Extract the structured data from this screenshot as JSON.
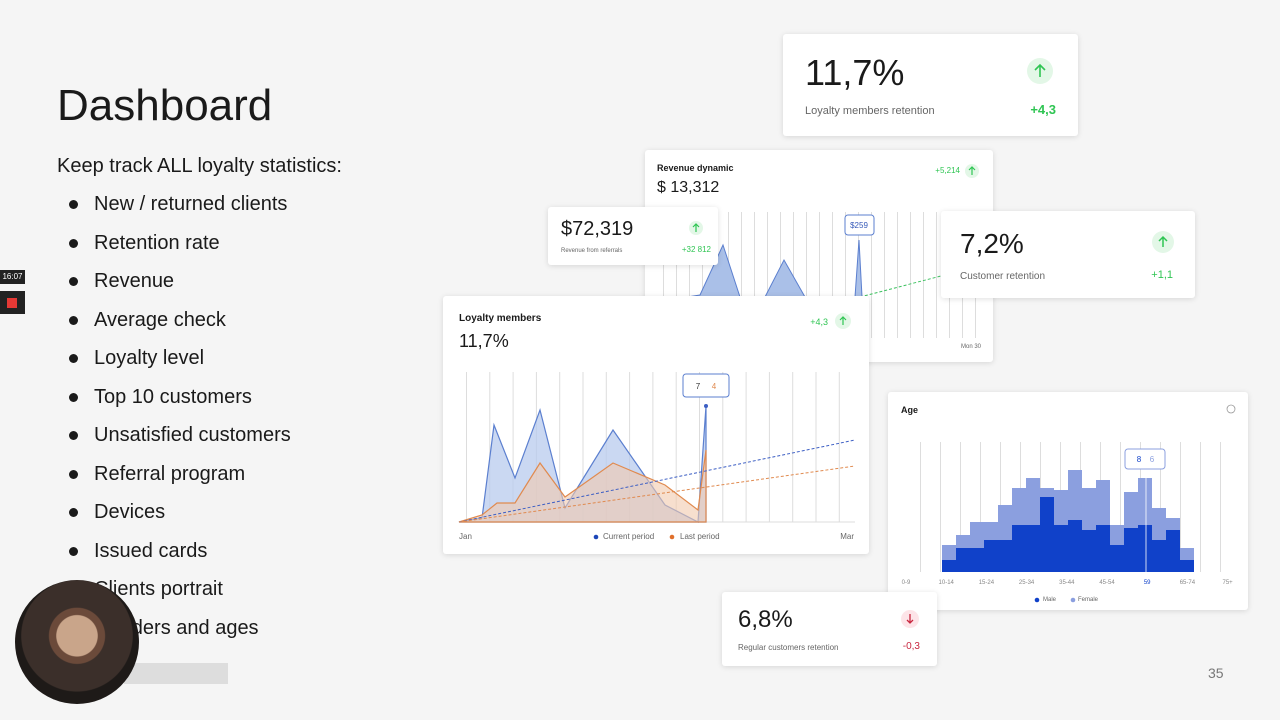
{
  "slide": {
    "title": "Dashboard",
    "intro": "Keep track ALL loyalty statistics:",
    "items": [
      "New / returned clients",
      "Retention rate",
      "Revenue",
      "Average check",
      "Loyalty level",
      "Top  10 customers",
      "Unsatisfied customers",
      "Referral program",
      "Devices",
      "Issued cards",
      "Clients portrait",
      "Genders and ages"
    ],
    "page_number": "35"
  },
  "recording": {
    "timer": "16:07"
  },
  "cards": {
    "loyalty_retention": {
      "value": "11,7%",
      "label": "Loyalty members retention",
      "change": "+4,3"
    },
    "revenue_dynamic": {
      "title": "Revenue dynamic",
      "value": "$ 13,312",
      "change": "+5,214",
      "tooltip": "$259",
      "x_label": "Mon 30"
    },
    "referrals": {
      "value": "$72,319",
      "label": "Revenue from referrals",
      "change": "+32 812"
    },
    "customer_retention": {
      "value": "7,2%",
      "label": "Customer retention",
      "change": "+1,1"
    },
    "loyalty_members": {
      "title": "Loyalty members",
      "value": "11,7%",
      "change": "+4,3",
      "tooltip": [
        "7",
        "4"
      ],
      "legend": [
        "Current period",
        "Last period"
      ],
      "x_labels": [
        "Jan",
        "Mar"
      ]
    },
    "age": {
      "title": "Age",
      "tooltip": [
        "8",
        "6"
      ],
      "x_labels": [
        "0-9",
        "10-14",
        "15-24",
        "25-34",
        "35-44",
        "45-54",
        "59",
        "65-74",
        "75+"
      ],
      "legend": [
        "Male",
        "Female"
      ]
    },
    "regular_retention": {
      "value": "6,8%",
      "label": "Regular customers retention",
      "change": "-0,3"
    }
  }
}
